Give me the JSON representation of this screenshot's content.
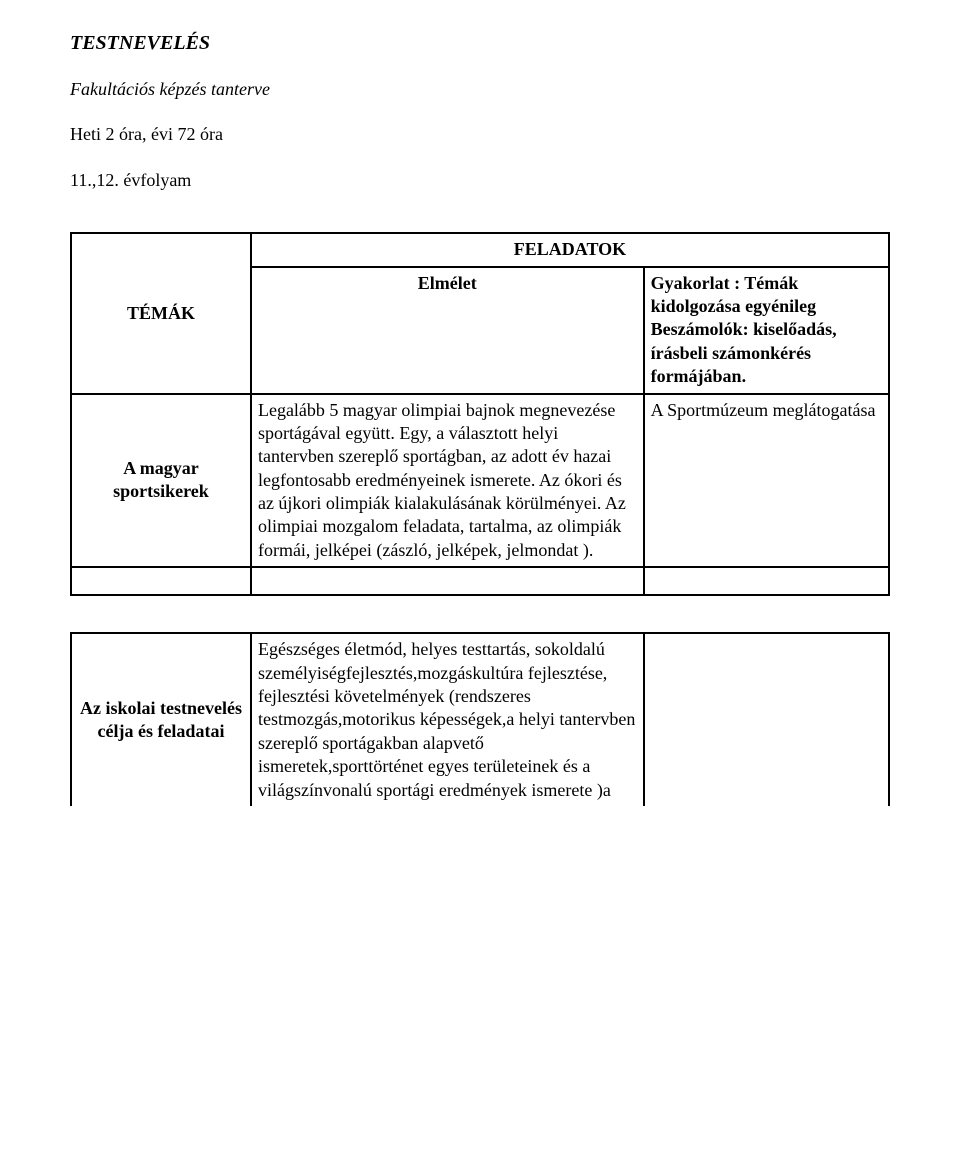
{
  "header": {
    "title": "TESTNEVELÉS",
    "subtitle": "Fakultációs képzés tanterve",
    "schedule": "Heti 2 óra, évi 72 óra",
    "grade": "11.,12. évfolyam"
  },
  "table1": {
    "themes_label": "TÉMÁK",
    "tasks_label": "FELADATOK",
    "theory_label": "Elmélet",
    "practice_text": "Gyakorlat : Témák kidolgozása egyénileg Beszámolók: kiselőadás, írásbeli számonkérés formájában.",
    "row_label": "A magyar sportsikerek",
    "row_theory": " Legalább 5 magyar olimpiai bajnok megnevezése sportágával együtt. Egy, a választott helyi tantervben szereplő sportágban, az adott év hazai legfontosabb eredményeinek ismerete. Az ókori és az újkori olimpiák kialakulásának körülményei. Az olimpiai mozgalom feladata, tartalma, az olimpiák formái, jelképei (zászló, jelképek, jelmondat ).",
    "row_practice": "A Sportmúzeum meglátogatása"
  },
  "table2": {
    "row_label": "Az iskolai testnevelés célja és feladatai",
    "row_body": "Egészséges életmód, helyes testtartás, sokoldalú személyiségfejlesztés,mozgáskultúra fejlesztése, fejlesztési követelmények (rendszeres testmozgás,motorikus képességek,a helyi tantervben szereplő sportágakban alapvető ismeretek,sporttörténet egyes területeinek és a világszínvonalú sportági eredmények  ismerete )a"
  }
}
